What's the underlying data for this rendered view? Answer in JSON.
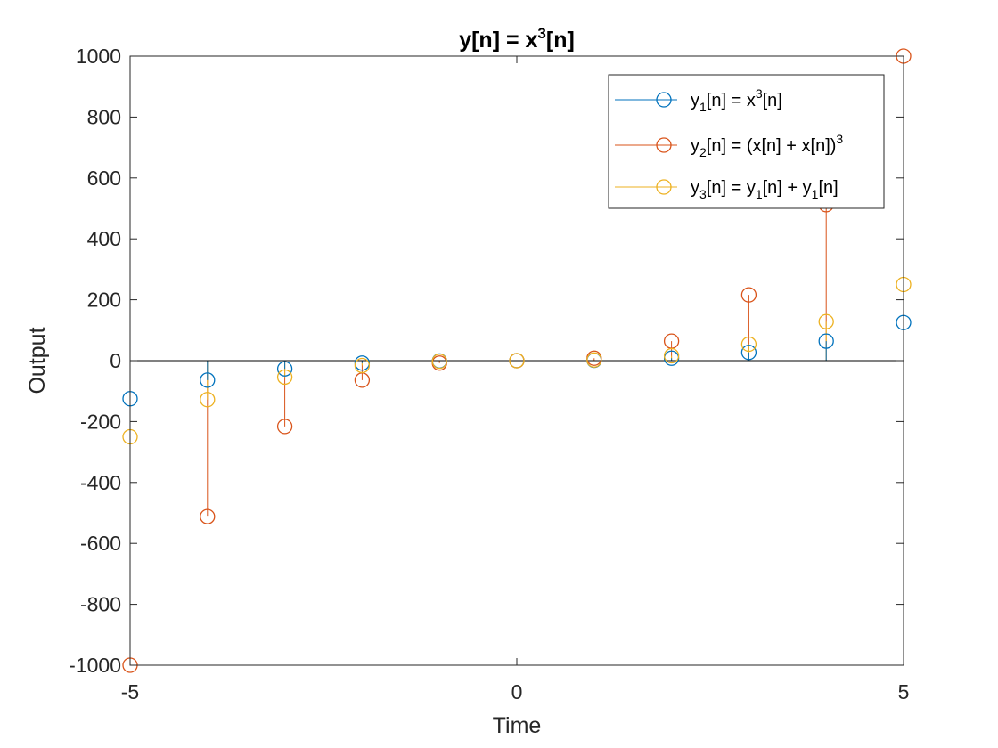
{
  "chart_data": {
    "type": "stem",
    "title": {
      "base": "y[n] = x",
      "sup": "3",
      "tail": "[n]"
    },
    "xlabel": "Time",
    "ylabel": "Output",
    "xlim": [
      -5,
      5
    ],
    "ylim": [
      -1000,
      1000
    ],
    "xticks": [
      -5,
      0,
      5
    ],
    "yticks": [
      -1000,
      -800,
      -600,
      -400,
      -200,
      0,
      200,
      400,
      600,
      800,
      1000
    ],
    "x": [
      -5,
      -4,
      -3,
      -2,
      -1,
      0,
      1,
      2,
      3,
      4,
      5
    ],
    "baseline": 0,
    "grid": false,
    "legend_location": "top-right",
    "series": [
      {
        "name": "y1[n] = x3[n]",
        "color": "#0072BD",
        "values": [
          -125,
          -64,
          -27,
          -8,
          -1,
          0,
          1,
          8,
          27,
          64,
          125
        ],
        "legend": [
          [
            "y",
            "n"
          ],
          [
            "1",
            "sub"
          ],
          [
            "[n] = x",
            "n"
          ],
          [
            "3",
            "sup"
          ],
          [
            "[n]",
            "n"
          ]
        ]
      },
      {
        "name": "y2[n] = (x[n] + x[n])3",
        "color": "#D95319",
        "values": [
          -1000,
          -512,
          -216,
          -64,
          -8,
          0,
          8,
          64,
          216,
          512,
          1000
        ],
        "legend": [
          [
            "y",
            "n"
          ],
          [
            "2",
            "sub"
          ],
          [
            "[n] = (x[n] + x[n])",
            "n"
          ],
          [
            "3",
            "sup"
          ]
        ]
      },
      {
        "name": "y3[n] = y1[n] + y1[n]",
        "color": "#EDB120",
        "values": [
          -250,
          -128,
          -54,
          -16,
          -2,
          0,
          2,
          16,
          54,
          128,
          250
        ],
        "legend": [
          [
            "y",
            "n"
          ],
          [
            "3",
            "sub"
          ],
          [
            "[n] = y",
            "n"
          ],
          [
            "1",
            "sub"
          ],
          [
            "[n] + y",
            "n"
          ],
          [
            "1",
            "sub"
          ],
          [
            "[n]",
            "n"
          ]
        ]
      }
    ]
  }
}
